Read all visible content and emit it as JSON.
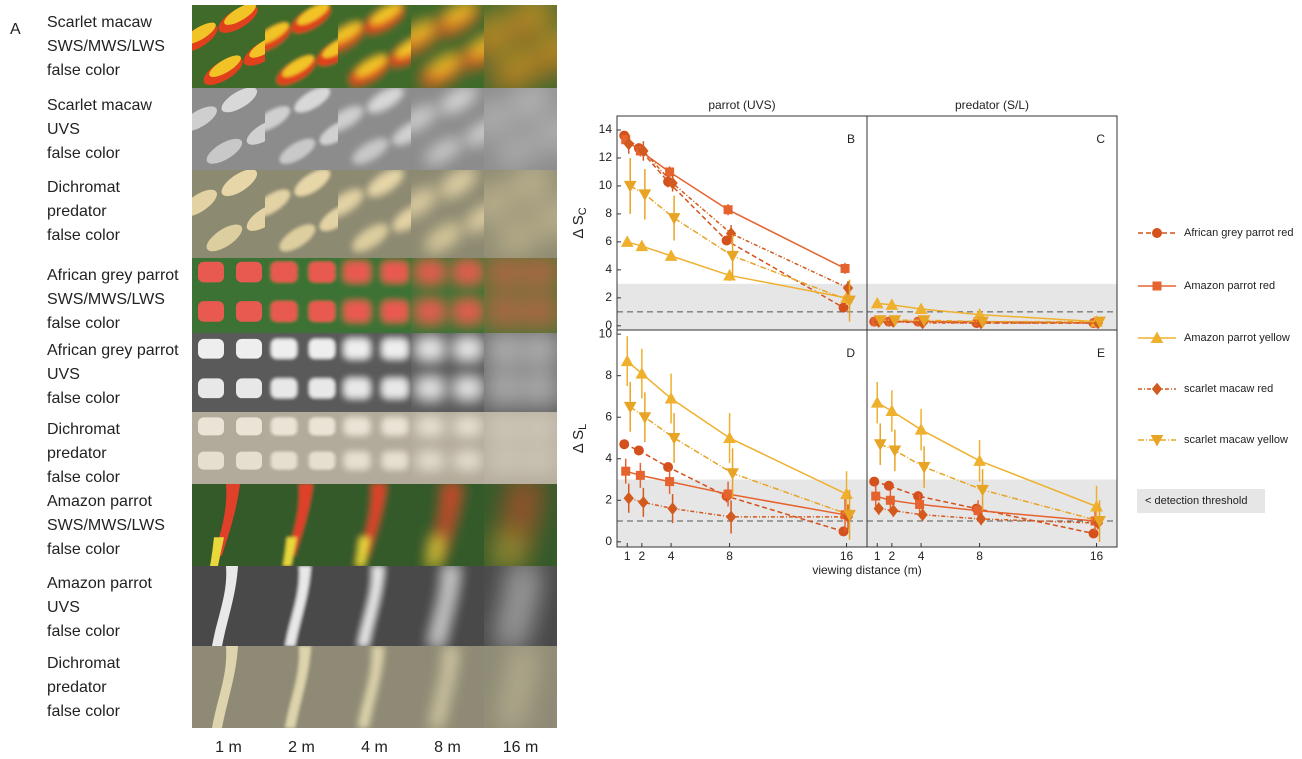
{
  "panel_a": {
    "label": "A",
    "rows": [
      [
        "Scarlet macaw",
        "SWS/MWS/LWS",
        "false color"
      ],
      [
        "Scarlet macaw",
        "UVS",
        "false color"
      ],
      [
        "Dichromat",
        "predator",
        "false color"
      ],
      [
        "African grey parrot",
        "SWS/MWS/LWS",
        "false color"
      ],
      [
        "African grey parrot",
        "UVS",
        "false color"
      ],
      [
        "Dichromat",
        "predator",
        "false color"
      ],
      [
        "Amazon parrot",
        "SWS/MWS/LWS",
        "false color"
      ],
      [
        "Amazon parrot",
        "UVS",
        "false color"
      ],
      [
        "Dichromat",
        "predator",
        "false color"
      ]
    ],
    "columns": [
      "1 m",
      "2 m",
      "4 m",
      "8 m",
      "16 m"
    ]
  },
  "legend": {
    "entries": [
      {
        "name": "African grey parrot red",
        "color": "#d4501c",
        "marker": "circle",
        "dash": "5,3"
      },
      {
        "name": "Amazon parrot red",
        "color": "#e5632e",
        "marker": "square",
        "dash": "none"
      },
      {
        "name": "Amazon parrot yellow",
        "color": "#efb02e",
        "marker": "triangle-up",
        "dash": "none"
      },
      {
        "name": "scarlet macaw red",
        "color": "#d25a1e",
        "marker": "diamond",
        "dash": "4,2,1,2"
      },
      {
        "name": "scarlet macaw yellow",
        "color": "#e8a424",
        "marker": "triangle-down",
        "dash": "6,2,1,2"
      }
    ],
    "threshold_label": "< detection threshold",
    "threshold_color": "#e6e6e6"
  },
  "chart_data": [
    {
      "type": "line",
      "panel": "B",
      "title": "parrot (UVS)",
      "ylabel": "Δ S",
      "ylabel_sub": "C",
      "x": [
        1,
        2,
        4,
        8,
        16
      ],
      "xlim": [
        0.3,
        17.4
      ],
      "ylim": [
        -0.3,
        15
      ],
      "yticks": [
        0,
        2,
        4,
        6,
        8,
        10,
        12,
        14
      ],
      "threshold": 3,
      "reference_line": 1,
      "series": [
        {
          "values": [
            13.6,
            12.7,
            10.3,
            6.1,
            1.3
          ],
          "errors": [
            0.3,
            0.3,
            0.4,
            0.3,
            0.3
          ]
        },
        {
          "values": [
            13.3,
            12.5,
            11,
            8.3,
            4.1
          ],
          "errors": [
            0.4,
            0.4,
            0.4,
            0.4,
            0.4
          ]
        },
        {
          "values": [
            6,
            5.7,
            5,
            3.6,
            2
          ],
          "errors": [
            0.3,
            0.3,
            0.3,
            0.4,
            0.5
          ]
        },
        {
          "values": [
            13,
            12.5,
            10.2,
            6.6,
            2.7
          ],
          "errors": [
            0.7,
            0.7,
            0.6,
            0.6,
            0.5
          ]
        },
        {
          "values": [
            10,
            9.4,
            7.7,
            5,
            1.8
          ],
          "errors": [
            2,
            1.8,
            1.6,
            1.5,
            1.5
          ]
        }
      ]
    },
    {
      "type": "line",
      "panel": "C",
      "title": "predator (S/L)",
      "x": [
        1,
        2,
        4,
        8,
        16
      ],
      "xlim": [
        0.3,
        17.4
      ],
      "ylim": [
        -0.3,
        15
      ],
      "threshold": 3,
      "reference_line": 1,
      "series": [
        {
          "values": [
            0.3,
            0.3,
            0.3,
            0.2,
            0.2
          ],
          "errors": [
            0.1,
            0.1,
            0.1,
            0.1,
            0.1
          ]
        },
        {
          "values": [
            0.3,
            0.3,
            0.3,
            0.3,
            0.2
          ],
          "errors": [
            0.1,
            0.1,
            0.1,
            0.1,
            0.1
          ]
        },
        {
          "values": [
            1.6,
            1.5,
            1.2,
            0.8,
            0.3
          ],
          "errors": [
            0.2,
            0.2,
            0.2,
            0.2,
            0.2
          ]
        },
        {
          "values": [
            0.3,
            0.3,
            0.2,
            0.2,
            0.2
          ],
          "errors": [
            0.1,
            0.1,
            0.1,
            0.1,
            0.1
          ]
        },
        {
          "values": [
            0.4,
            0.4,
            0.4,
            0.3,
            0.3
          ],
          "errors": [
            0.2,
            0.2,
            0.2,
            0.2,
            0.2
          ]
        }
      ]
    },
    {
      "type": "line",
      "panel": "D",
      "ylabel": "Δ S",
      "ylabel_sub": "L",
      "xlabel": "viewing distance (m)",
      "x": [
        1,
        2,
        4,
        8,
        16
      ],
      "xlim": [
        0.3,
        17.4
      ],
      "xticks": [
        1,
        2,
        4,
        8,
        16
      ],
      "ylim": [
        -0.25,
        10.2
      ],
      "yticks": [
        0,
        2,
        4,
        6,
        8,
        10
      ],
      "threshold": 3,
      "reference_line": 1,
      "series": [
        {
          "values": [
            4.7,
            4.4,
            3.6,
            2.2,
            0.5
          ],
          "errors": [
            0.2,
            0.2,
            0.2,
            0.3,
            0.2
          ]
        },
        {
          "values": [
            3.4,
            3.2,
            2.9,
            2.3,
            1.3
          ],
          "errors": [
            0.6,
            0.6,
            0.6,
            0.6,
            0.8
          ]
        },
        {
          "values": [
            8.7,
            8.1,
            6.9,
            5,
            2.3
          ],
          "errors": [
            1.2,
            1.2,
            1.2,
            1.2,
            1.1
          ]
        },
        {
          "values": [
            2.1,
            1.9,
            1.6,
            1.2,
            1.2
          ],
          "errors": [
            0.7,
            0.7,
            0.7,
            0.8,
            0.6
          ]
        },
        {
          "values": [
            6.5,
            6,
            5,
            3.3,
            1.3
          ],
          "errors": [
            1.2,
            1.2,
            1.2,
            1.2,
            1.2
          ]
        }
      ]
    },
    {
      "type": "line",
      "panel": "E",
      "x": [
        1,
        2,
        4,
        8,
        16
      ],
      "xlim": [
        0.3,
        17.4
      ],
      "xticks": [
        1,
        2,
        4,
        8,
        16
      ],
      "ylim": [
        -0.25,
        10.2
      ],
      "threshold": 3,
      "reference_line": 1,
      "series": [
        {
          "values": [
            2.9,
            2.7,
            2.2,
            1.6,
            0.4
          ],
          "errors": [
            0.2,
            0.2,
            0.2,
            0.2,
            0.2
          ]
        },
        {
          "values": [
            2.2,
            2,
            1.8,
            1.5,
            1
          ],
          "errors": [
            0.5,
            0.5,
            0.5,
            0.5,
            0.5
          ]
        },
        {
          "values": [
            6.7,
            6.3,
            5.4,
            3.9,
            1.7
          ],
          "errors": [
            1,
            1,
            1,
            1,
            1
          ]
        },
        {
          "values": [
            1.6,
            1.5,
            1.3,
            1.1,
            0.9
          ],
          "errors": [
            0.3,
            0.3,
            0.3,
            0.3,
            0.3
          ]
        },
        {
          "values": [
            4.7,
            4.4,
            3.6,
            2.5,
            1
          ],
          "errors": [
            1,
            1,
            1,
            1,
            1
          ]
        }
      ]
    }
  ]
}
